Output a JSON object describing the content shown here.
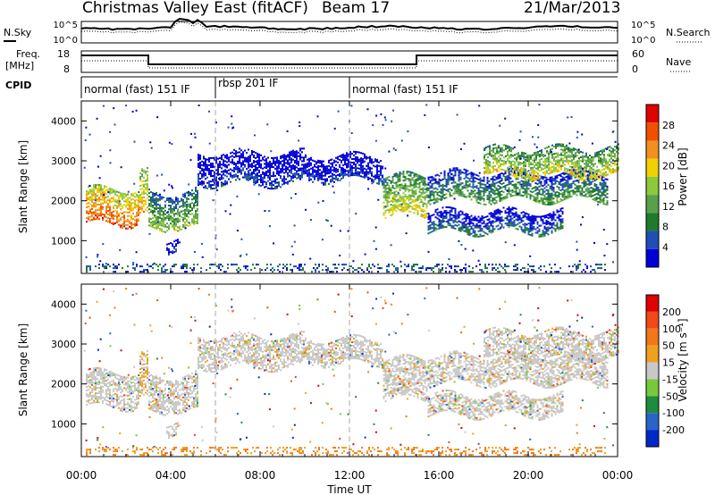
{
  "header": {
    "title": "Christmas Valley East (fitACF)",
    "beam": "Beam 17",
    "date": "21/Mar/2013"
  },
  "noise_panel": {
    "left_label": "N.Sky",
    "right_label": "N.Search",
    "left_ticks": [
      "10^5",
      "10^0"
    ],
    "right_ticks": [
      "10^5",
      "10^0"
    ]
  },
  "freq_panel": {
    "left_label_1": "Freq.",
    "left_label_2": "[MHz]",
    "right_label": "Nave",
    "left_ticks": [
      "18",
      "8"
    ],
    "right_ticks": [
      "60",
      "0"
    ]
  },
  "cpid": {
    "label": "CPID",
    "segments": [
      {
        "name": "normal (fast) 151 IF",
        "start_h": 0,
        "end_h": 6
      },
      {
        "name": "rbsp 201 IF",
        "start_h": 6,
        "end_h": 12
      },
      {
        "name": "normal (fast) 151 IF",
        "start_h": 12,
        "end_h": 24
      }
    ]
  },
  "colors": {
    "power": [
      "#0000d8",
      "#1f4fb4",
      "#1f7a2e",
      "#5aa04c",
      "#8cc83c",
      "#f0d000",
      "#f09020",
      "#f05000",
      "#e00000"
    ],
    "velocity": [
      "#0028c8",
      "#2a64c8",
      "#1e8c3c",
      "#78c83c",
      "#c8c8c8",
      "#f0a020",
      "#f07818",
      "#f04818",
      "#e00000"
    ]
  },
  "chart_data": [
    {
      "type": "heatmap",
      "name": "power",
      "ylabel": "Slant Range [km]",
      "colorbar_label": "Power [dB]",
      "colorbar_ticks": [
        "28",
        "24",
        "20",
        "16",
        "12",
        "8",
        "4"
      ],
      "x_range_h": [
        0,
        24
      ],
      "y_range_km": [
        180,
        4500
      ],
      "y_ticks": [
        "4000",
        "3000",
        "2000",
        "1000"
      ],
      "features": [
        {
          "t0": 0.2,
          "t1": 2.6,
          "r0": 1400,
          "r1": 2300,
          "level": 7
        },
        {
          "t0": 2.6,
          "t1": 3.0,
          "r0": 1600,
          "r1": 2700,
          "level": 6
        },
        {
          "t0": 3.0,
          "t1": 5.2,
          "r0": 1300,
          "r1": 2200,
          "level": 4
        },
        {
          "t0": 3.8,
          "t1": 4.4,
          "r0": 700,
          "r1": 1000,
          "level": 1
        },
        {
          "t0": 5.2,
          "t1": 10.0,
          "r0": 2400,
          "r1": 3200,
          "level": 1
        },
        {
          "t0": 10.0,
          "t1": 13.5,
          "r0": 2500,
          "r1": 3100,
          "level": 1
        },
        {
          "t0": 13.5,
          "t1": 15.5,
          "r0": 1600,
          "r1": 2600,
          "level": 5
        },
        {
          "t0": 15.5,
          "t1": 23.5,
          "r0": 2000,
          "r1": 2700,
          "level": 3
        },
        {
          "t0": 15.5,
          "t1": 21.5,
          "r0": 1200,
          "r1": 1700,
          "level": 2
        },
        {
          "t0": 18.0,
          "t1": 24.0,
          "r0": 2600,
          "r1": 3300,
          "level": 5
        }
      ]
    },
    {
      "type": "heatmap",
      "name": "velocity",
      "ylabel": "Slant Range [km]",
      "colorbar_label": "Velocity [m s⁻¹]",
      "colorbar_ticks": [
        "200",
        "100",
        "50",
        "15",
        "-15",
        "-50",
        "-100",
        "-200"
      ],
      "xlabel": "Time UT",
      "x_ticks": [
        "00:00",
        "04:00",
        "08:00",
        "12:00",
        "16:00",
        "20:00",
        "00:00"
      ],
      "x_range_h": [
        0,
        24
      ],
      "y_range_km": [
        180,
        4500
      ],
      "y_ticks": [
        "4000",
        "3000",
        "2000",
        "1000"
      ]
    }
  ]
}
